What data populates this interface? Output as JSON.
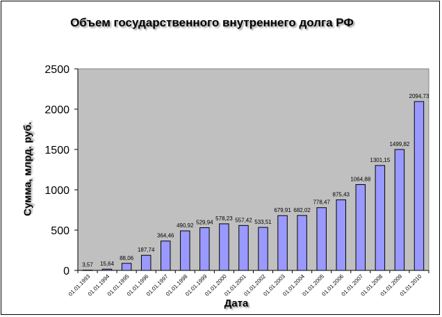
{
  "chart_data": {
    "type": "bar",
    "title": "Объем государственного внутреннего долга РФ",
    "xlabel": "Дата",
    "ylabel": "Сумма, млрд. руб.",
    "ylim": [
      0,
      2500
    ],
    "yticks": [
      "0",
      "500",
      "1000",
      "1500",
      "2000",
      "2500"
    ],
    "grid": false,
    "legend": "none",
    "categories": [
      "01.01.1993",
      "01.01.1994",
      "01.01.1995",
      "01.01.1996",
      "01.01.1997",
      "01.01.1998",
      "01.01.1999",
      "01.01.2000",
      "01.01.2001",
      "01.01.2002",
      "01.01.2003",
      "01.01.2004",
      "01.01.2005",
      "01.01.2006",
      "01.01.2007",
      "01.01.2008",
      "01.01.2009",
      "01.01.2010"
    ],
    "values": [
      3.57,
      15.64,
      88.06,
      187.74,
      364.46,
      490.92,
      529.94,
      578.23,
      557.42,
      533.51,
      679.91,
      682.02,
      778.47,
      875.43,
      1064.88,
      1301.15,
      1499.82,
      2094.73
    ],
    "value_labels": [
      "3,57",
      "15,64",
      "88,06",
      "187,74",
      "364,46",
      "490,92",
      "529,94",
      "578,23",
      "557,42",
      "533,51",
      "679,91",
      "682,02",
      "778,47",
      "875,43",
      "1064,88",
      "1301,15",
      "1499,82",
      "2094,73"
    ],
    "colors": {
      "plot_background": "#c0c0c0",
      "bar_fill": "#9999ff",
      "bar_stroke": "#000000"
    }
  }
}
